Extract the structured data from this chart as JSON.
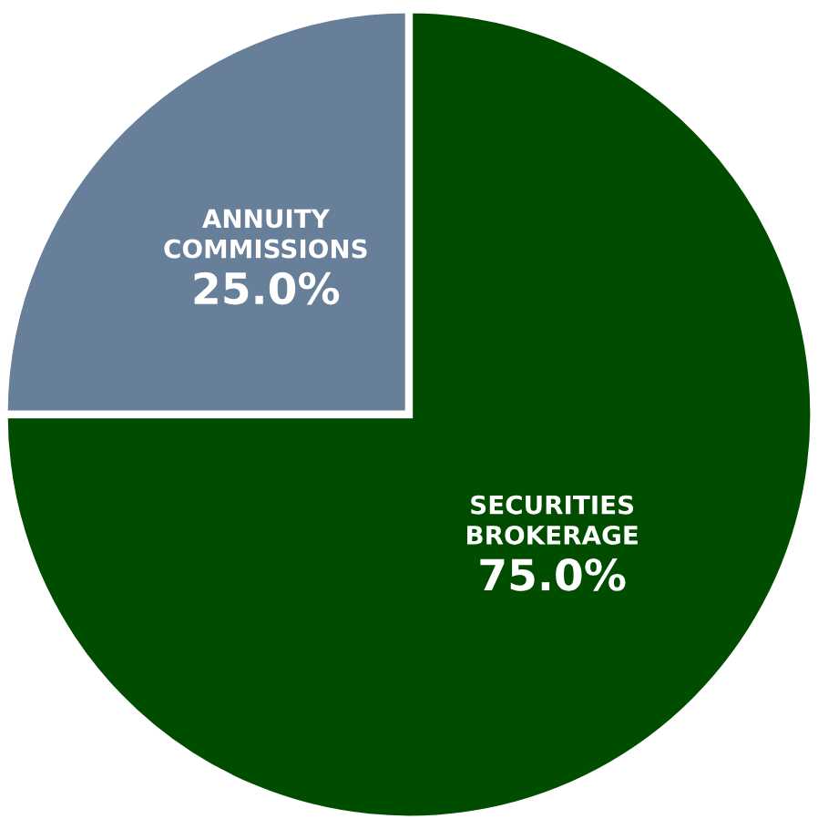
{
  "chart_data": {
    "type": "pie",
    "categories": [
      "ANNUITY COMMISSIONS",
      "SECURITIES BROKERAGE"
    ],
    "values": [
      25.0,
      75.0
    ],
    "value_labels": [
      "25.0%",
      "75.0%"
    ],
    "colors": [
      "#677f99",
      "#004d00"
    ]
  }
}
